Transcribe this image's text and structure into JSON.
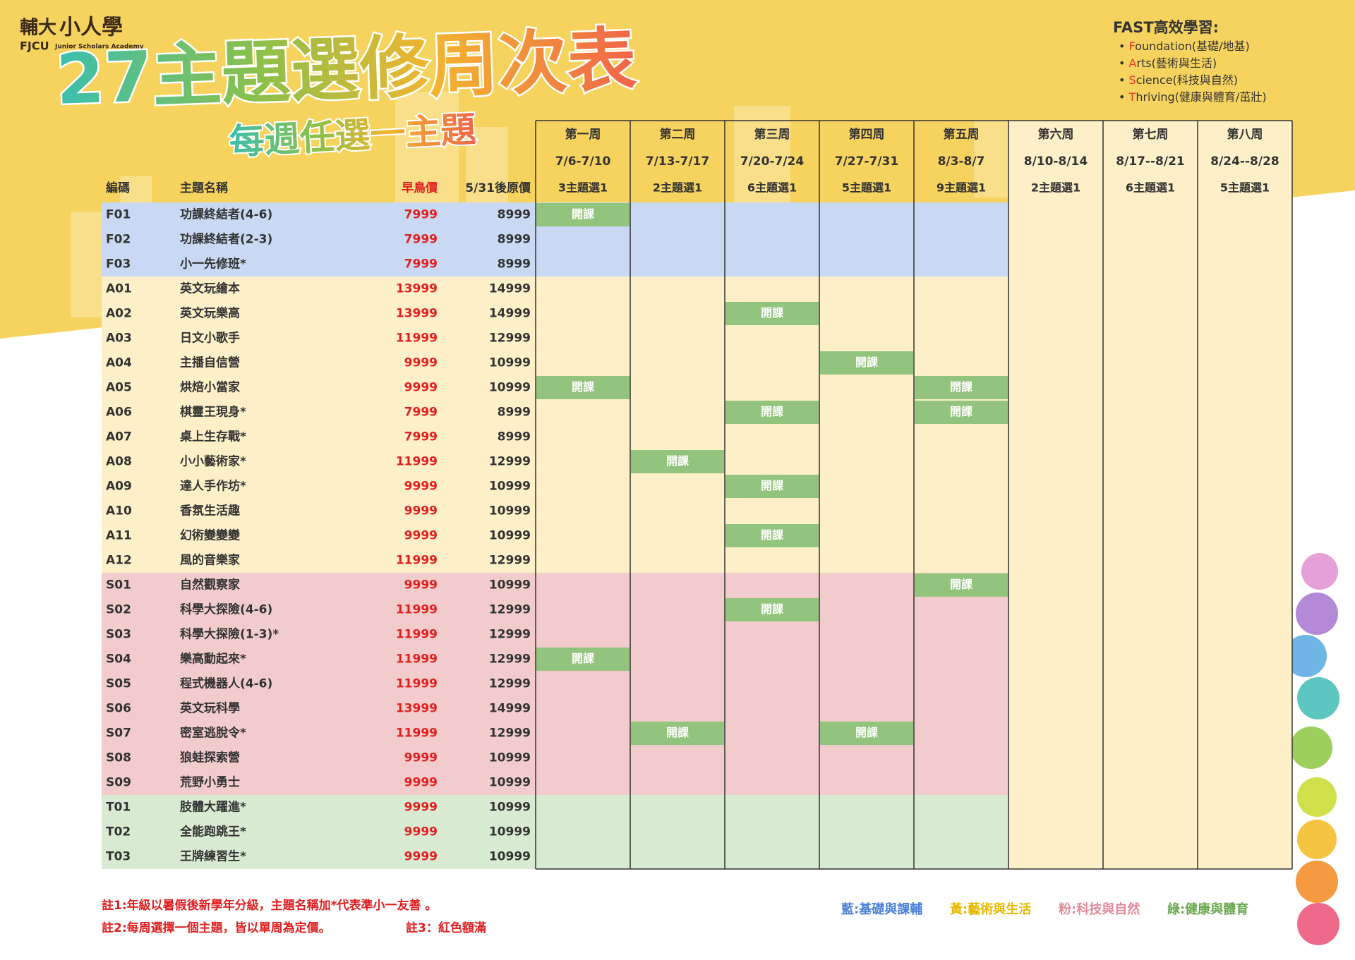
{
  "header": {
    "logo": {
      "name": "輔大",
      "brand": "小人學",
      "en": "FJCU",
      "tagline": "Junior Scholars Academy"
    },
    "title": "27主題選修周次表",
    "subtitle": "每週任選一主題"
  },
  "fast": {
    "title": "FAST高效學習:",
    "items": [
      {
        "initial": "F",
        "rest": "oundation(基礎/地基)"
      },
      {
        "initial": "A",
        "rest": "rts(藝術與生活)"
      },
      {
        "initial": "S",
        "rest": "cience(科技與自然)"
      },
      {
        "initial": "T",
        "rest": "hriving(健康與體育/茁壯)"
      }
    ]
  },
  "table": {
    "columns": [
      "編碼",
      "主題名稱",
      "早鳥價",
      "5/31後原價"
    ],
    "open_label": "開課",
    "open_color": "#93c47d",
    "weeks": [
      {
        "name": "第一周",
        "dates": "7/6-7/10",
        "count": "3主題選1"
      },
      {
        "name": "第二周",
        "dates": "7/13-7/17",
        "count": "2主題選1"
      },
      {
        "name": "第三周",
        "dates": "7/20-7/24",
        "count": "6主題選1"
      },
      {
        "name": "第四周",
        "dates": "7/27-7/31",
        "count": "5主題選1"
      },
      {
        "name": "第五周",
        "dates": "8/3-8/7",
        "count": "9主題選1"
      },
      {
        "name": "第六周",
        "dates": "8/10-8/14",
        "count": "2主題選1"
      },
      {
        "name": "第七周",
        "dates": "8/17--8/21",
        "count": "6主題選1"
      },
      {
        "name": "第八周",
        "dates": "8/24--8/28",
        "count": "5主題選1"
      }
    ],
    "groups": [
      {
        "color": "#c9d9f3",
        "rows": [
          {
            "code": "F01",
            "name": "功課終結者(4-6)",
            "early": 7999,
            "price": 8999,
            "open": [
              0
            ]
          },
          {
            "code": "F02",
            "name": "功課終結者(2-3)",
            "early": 7999,
            "price": 8999,
            "open": []
          },
          {
            "code": "F03",
            "name": "小一先修班*",
            "early": 7999,
            "price": 8999,
            "open": []
          }
        ]
      },
      {
        "color": "#fdf0c9",
        "rows": [
          {
            "code": "A01",
            "name": "英文玩繪本",
            "early": 13999,
            "price": 14999,
            "open": []
          },
          {
            "code": "A02",
            "name": "英文玩樂高",
            "early": 13999,
            "price": 14999,
            "open": [
              2
            ]
          },
          {
            "code": "A03",
            "name": "日文小歌手",
            "early": 11999,
            "price": 12999,
            "open": []
          },
          {
            "code": "A04",
            "name": "主播自信營",
            "early": 9999,
            "price": 10999,
            "open": [
              3
            ]
          },
          {
            "code": "A05",
            "name": "烘焙小當家",
            "early": 9999,
            "price": 10999,
            "open": [
              0,
              4
            ]
          },
          {
            "code": "A06",
            "name": "棋靈王現身*",
            "early": 7999,
            "price": 8999,
            "open": [
              2,
              4
            ]
          },
          {
            "code": "A07",
            "name": "桌上生存戰*",
            "early": 7999,
            "price": 8999,
            "open": []
          },
          {
            "code": "A08",
            "name": "小小藝術家*",
            "early": 11999,
            "price": 12999,
            "open": [
              1
            ]
          },
          {
            "code": "A09",
            "name": "達人手作坊*",
            "early": 9999,
            "price": 10999,
            "open": [
              2
            ]
          },
          {
            "code": "A10",
            "name": "香氛生活趣",
            "early": 9999,
            "price": 10999,
            "open": []
          },
          {
            "code": "A11",
            "name": "幻術變變變",
            "early": 9999,
            "price": 10999,
            "open": [
              2
            ]
          },
          {
            "code": "A12",
            "name": "風的音樂家",
            "early": 11999,
            "price": 12999,
            "open": []
          }
        ]
      },
      {
        "color": "#f2cccc",
        "rows": [
          {
            "code": "S01",
            "name": "自然觀察家",
            "early": 9999,
            "price": 10999,
            "open": [
              4
            ]
          },
          {
            "code": "S02",
            "name": "科學大探險(4-6)",
            "early": 11999,
            "price": 12999,
            "open": [
              2
            ]
          },
          {
            "code": "S03",
            "name": "科學大探險(1-3)*",
            "early": 11999,
            "price": 12999,
            "open": []
          },
          {
            "code": "S04",
            "name": "樂高動起來*",
            "early": 11999,
            "price": 12999,
            "open": [
              0
            ]
          },
          {
            "code": "S05",
            "name": "程式機器人(4-6)",
            "early": 11999,
            "price": 12999,
            "open": []
          },
          {
            "code": "S06",
            "name": "英文玩科學",
            "early": 13999,
            "price": 14999,
            "open": []
          },
          {
            "code": "S07",
            "name": "密室逃脫令*",
            "early": 11999,
            "price": 12999,
            "open": [
              1,
              3
            ]
          },
          {
            "code": "S08",
            "name": "狼蛙探索營",
            "early": 9999,
            "price": 10999,
            "open": []
          },
          {
            "code": "S09",
            "name": "荒野小勇士",
            "early": 9999,
            "price": 10999,
            "open": []
          }
        ]
      },
      {
        "color": "#d9ead3",
        "rows": [
          {
            "code": "T01",
            "name": "肢體大躍進*",
            "early": 9999,
            "price": 10999,
            "open": []
          },
          {
            "code": "T02",
            "name": "全能跑跳王*",
            "early": 9999,
            "price": 10999,
            "open": []
          },
          {
            "code": "T03",
            "name": "王牌練習生*",
            "early": 9999,
            "price": 10999,
            "open": []
          }
        ]
      }
    ]
  },
  "notes": [
    "註1:年級以暑假後新學年分級，主題名稱加*代表準小一友善 。",
    "註2:每周選擇一個主題，皆以單周為定價。",
    "註3：紅色額滿"
  ],
  "legend": [
    {
      "text": "藍:基礎與課輔",
      "color": "#4a7fd6"
    },
    {
      "text": "黃:藝術與生活",
      "color": "#e6b800"
    },
    {
      "text": "粉:科技與自然",
      "color": "#e08a9a"
    },
    {
      "text": "綠:健康與體育",
      "color": "#6aa84f"
    }
  ]
}
